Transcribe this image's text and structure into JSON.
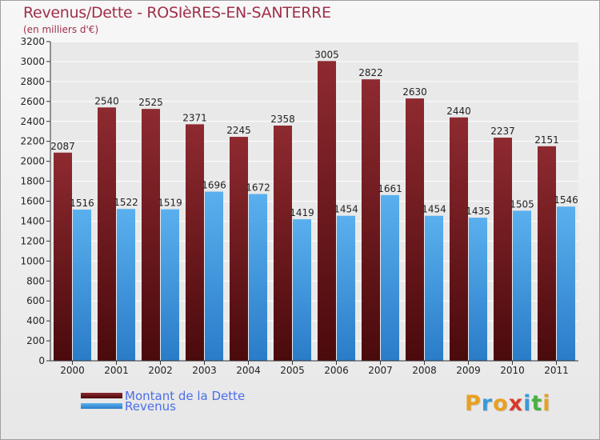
{
  "title": "Revenus/Dette - ROSIèRES-EN-SANTERRE",
  "subtitle": "(en milliers d'€)",
  "chart_data": {
    "type": "bar",
    "title": "Revenus/Dette - ROSIèRES-EN-SANTERRE",
    "subtitle": "(en milliers d'€)",
    "xlabel": "",
    "ylabel": "",
    "categories": [
      "2000",
      "2001",
      "2002",
      "2003",
      "2004",
      "2005",
      "2006",
      "2007",
      "2008",
      "2009",
      "2010",
      "2011"
    ],
    "series": [
      {
        "name": "Montant de la Dette",
        "values": [
          2087,
          2540,
          2525,
          2371,
          2245,
          2358,
          3005,
          2822,
          2630,
          2440,
          2237,
          2151
        ],
        "color": "#7a1a1e"
      },
      {
        "name": "Revenus",
        "values": [
          1516,
          1522,
          1519,
          1696,
          1672,
          1419,
          1454,
          1661,
          1454,
          1435,
          1505,
          1546
        ],
        "color": "#4aa3e6"
      }
    ],
    "ylim": [
      0,
      3200
    ],
    "yticks": [
      0,
      200,
      400,
      600,
      800,
      1000,
      1200,
      1400,
      1600,
      1800,
      2000,
      2200,
      2400,
      2600,
      2800,
      3000,
      3200
    ],
    "grid": true,
    "legend": "bottom-left"
  },
  "legend": {
    "items": [
      {
        "label": "Montant de la Dette",
        "color": "#7a1a1e"
      },
      {
        "label": "Revenus",
        "color": "#4aa3e6"
      }
    ]
  },
  "logo": {
    "letters": [
      "P",
      "r",
      "o",
      "x",
      "i",
      "t",
      "i"
    ],
    "colors": [
      "#e8a020",
      "#3a9ad9",
      "#e8a020",
      "#d83a2a",
      "#3a9ad9",
      "#4ab040",
      "#e8a020"
    ]
  }
}
